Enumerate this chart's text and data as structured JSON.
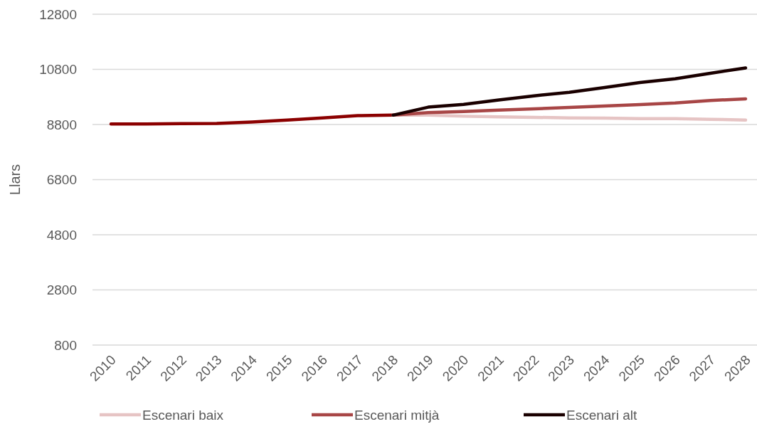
{
  "chart_data": {
    "type": "line",
    "ylabel": "Llars",
    "categories": [
      "2010",
      "2011",
      "2012",
      "2013",
      "2014",
      "2015",
      "2016",
      "2017",
      "2018",
      "2019",
      "2020",
      "2021",
      "2022",
      "2023",
      "2024",
      "2025",
      "2026",
      "2027",
      "2028"
    ],
    "series": [
      {
        "color": "#8b0000",
        "values": [
          8820,
          8820,
          8830,
          8840,
          8890,
          8960,
          9040,
          9120,
          9140,
          null,
          null,
          null,
          null,
          null,
          null,
          null,
          null,
          null,
          null
        ]
      },
      {
        "name": "Escenari baix",
        "color": "#e6c4c4",
        "values": [
          null,
          null,
          null,
          null,
          null,
          null,
          null,
          null,
          9140,
          9140,
          9100,
          9080,
          9060,
          9040,
          9030,
          9010,
          9010,
          8990,
          8960
        ]
      },
      {
        "name": "Escenari mitjà",
        "color": "#a84646",
        "values": [
          null,
          null,
          null,
          null,
          null,
          null,
          null,
          null,
          9140,
          9230,
          9270,
          9320,
          9370,
          9420,
          9470,
          9520,
          9580,
          9670,
          9730
        ]
      },
      {
        "name": "Escenari alt",
        "color": "#1a0000",
        "values": [
          null,
          null,
          null,
          null,
          null,
          null,
          null,
          null,
          9140,
          9430,
          9530,
          9690,
          9840,
          9970,
          10140,
          10320,
          10460,
          10660,
          10850
        ]
      }
    ],
    "ylim": [
      800,
      12800
    ],
    "yticks": [
      800,
      2800,
      4800,
      6800,
      8800,
      10800,
      12800
    ],
    "grid": "y",
    "legend": "bottom",
    "marker": "none",
    "line_style": "solid"
  }
}
